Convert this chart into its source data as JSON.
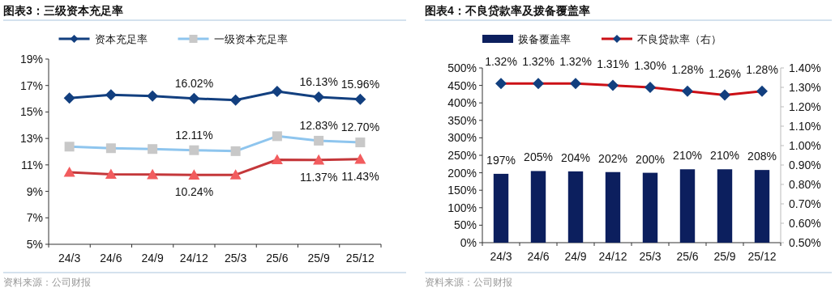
{
  "chart_data": [
    {
      "type": "line",
      "title": "图表3：三级资本充足率",
      "categories": [
        "24/3",
        "24/6",
        "24/9",
        "24/12",
        "25/3",
        "25/6",
        "25/9",
        "25/12"
      ],
      "series": [
        {
          "name": "资本充足率",
          "color": "#123f7f",
          "marker": "diamond",
          "values": [
            16.05,
            16.3,
            16.2,
            16.02,
            15.9,
            16.56,
            16.13,
            15.96
          ],
          "value_labels": [
            null,
            null,
            null,
            "16.02%",
            null,
            null,
            "16.13%",
            "15.96%"
          ]
        },
        {
          "name": "一级资本充足率",
          "color": "#8ec5ee",
          "marker": "square",
          "values": [
            12.38,
            12.26,
            12.2,
            12.11,
            12.04,
            13.17,
            12.83,
            12.7
          ],
          "value_labels": [
            null,
            null,
            null,
            "12.11%",
            null,
            null,
            "12.83%",
            "12.70%"
          ]
        },
        {
          "color": "#c4373a",
          "marker": "triangle",
          "values": [
            10.44,
            10.29,
            10.27,
            10.24,
            10.25,
            11.39,
            11.37,
            11.43
          ],
          "value_labels": [
            null,
            null,
            null,
            "10.24%",
            null,
            null,
            "11.37%",
            "11.43%"
          ]
        }
      ],
      "ylim": [
        5,
        19
      ],
      "yticks": [
        {
          "value": 5,
          "label": "5%"
        },
        {
          "value": 7,
          "label": "7%"
        },
        {
          "value": 9,
          "label": "9%"
        },
        {
          "value": 11,
          "label": "11%"
        },
        {
          "value": 13,
          "label": "13%"
        },
        {
          "value": 15,
          "label": "15%"
        },
        {
          "value": 17,
          "label": "17%"
        },
        {
          "value": 19,
          "label": "19%"
        }
      ],
      "legend": "top",
      "grid": false,
      "annotations": [
        "资料来源：公司财报"
      ]
    },
    {
      "type": "bar",
      "title": "图表4：不良贷款率及拨备覆盖率",
      "categories": [
        "24/3",
        "24/6",
        "24/9",
        "24/12",
        "25/3",
        "25/6",
        "25/9",
        "25/12"
      ],
      "series": [
        {
          "name": "拨备覆盖率",
          "color": "#0c1f5e",
          "values": [
            197,
            205,
            204,
            202,
            200,
            210,
            210,
            208
          ],
          "value_labels": [
            "197%",
            "205%",
            "204%",
            "202%",
            "200%",
            "210%",
            "210%",
            "208%"
          ]
        },
        {
          "name": "不良贷款率（右）",
          "type": "line",
          "axis": "y2",
          "color": "#cc1016",
          "marker": "diamond",
          "values": [
            1.32,
            1.32,
            1.32,
            1.31,
            1.3,
            1.28,
            1.26,
            1.28
          ],
          "value_labels": [
            "1.32%",
            "1.32%",
            "1.32%",
            "1.31%",
            "1.30%",
            "1.28%",
            "1.26%",
            "1.28%"
          ]
        }
      ],
      "ylim": [
        0,
        500
      ],
      "yticks": [
        {
          "value": 0,
          "label": "0%"
        },
        {
          "value": 50,
          "label": "50%"
        },
        {
          "value": 100,
          "label": "100%"
        },
        {
          "value": 150,
          "label": "150%"
        },
        {
          "value": 200,
          "label": "200%"
        },
        {
          "value": 250,
          "label": "250%"
        },
        {
          "value": 300,
          "label": "300%"
        },
        {
          "value": 350,
          "label": "350%"
        },
        {
          "value": 400,
          "label": "400%"
        },
        {
          "value": 450,
          "label": "450%"
        },
        {
          "value": 500,
          "label": "500%"
        }
      ],
      "y2lim": [
        0.5,
        1.4
      ],
      "y2ticks": [
        {
          "value": 0.5,
          "label": "0.50%"
        },
        {
          "value": 0.6,
          "label": "0.60%"
        },
        {
          "value": 0.7,
          "label": "0.70%"
        },
        {
          "value": 0.8,
          "label": "0.80%"
        },
        {
          "value": 0.9,
          "label": "0.90%"
        },
        {
          "value": 1.0,
          "label": "1.00%"
        },
        {
          "value": 1.1,
          "label": "1.10%"
        },
        {
          "value": 1.2,
          "label": "1.20%"
        },
        {
          "value": 1.3,
          "label": "1.30%"
        },
        {
          "value": 1.4,
          "label": "1.40%"
        }
      ],
      "legend": "top",
      "grid": false,
      "annotations": [
        "资料来源：公司财报"
      ]
    }
  ]
}
